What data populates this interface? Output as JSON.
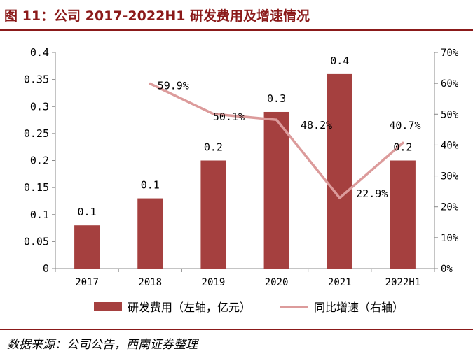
{
  "title": "图 11：公司 2017-2022H1 研发费用及增速情况",
  "source": "数据来源：公司公告，西南证券整理",
  "colors": {
    "bar": "#a5403f",
    "line": "#dc9b9b",
    "accent": "#8b1a1a"
  },
  "chart_data": {
    "type": "bar",
    "categories": [
      "2017",
      "2018",
      "2019",
      "2020",
      "2021",
      "2022H1"
    ],
    "series": [
      {
        "name": "研发费用（左轴，亿元）",
        "type": "bar",
        "axis": "left",
        "values": [
          0.08,
          0.13,
          0.2,
          0.29,
          0.36,
          0.2
        ],
        "data_labels": [
          "0.1",
          "0.1",
          "0.2",
          "0.3",
          "0.4",
          "0.2"
        ]
      },
      {
        "name": "同比增速（右轴）",
        "type": "line",
        "axis": "right",
        "values": [
          null,
          59.9,
          50.1,
          48.2,
          22.9,
          40.7
        ],
        "data_labels": [
          "",
          "59.9%",
          "50.1%",
          "48.2%",
          "22.9%",
          "40.7%"
        ]
      }
    ],
    "y_left": {
      "ylim": [
        0,
        0.4
      ],
      "ticks": [
        0,
        0.05,
        0.1,
        0.15,
        0.2,
        0.25,
        0.3,
        0.35,
        0.4
      ],
      "tick_labels": [
        "0",
        "0.05",
        "0.1",
        "0.15",
        "0.2",
        "0.25",
        "0.3",
        "0.35",
        "0.4"
      ]
    },
    "y_right": {
      "ylim": [
        0,
        70
      ],
      "ticks": [
        0,
        10,
        20,
        30,
        40,
        50,
        60,
        70
      ],
      "tick_labels": [
        "0%",
        "10%",
        "20%",
        "30%",
        "40%",
        "50%",
        "60%",
        "70%"
      ]
    },
    "grid": false,
    "legend_position": "bottom"
  }
}
